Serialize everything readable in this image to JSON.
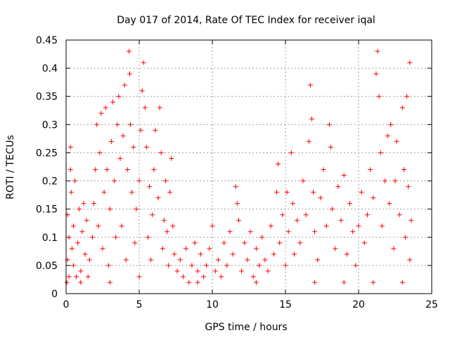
{
  "chart_data": {
    "type": "scatter",
    "title": "Day 017 of 2014, Rate Of TEC Index for receiver iqal",
    "xlabel": "GPS time / hours",
    "ylabel": "ROTI / TECUs",
    "xlim": [
      0,
      25
    ],
    "ylim": [
      0,
      0.45
    ],
    "x_ticks": [
      0,
      5,
      10,
      15,
      20,
      25
    ],
    "x_tick_labels": [
      "0",
      "5",
      "10",
      "15",
      "20",
      "25"
    ],
    "y_ticks": [
      0,
      0.05,
      0.1,
      0.15,
      0.2,
      0.25,
      0.3,
      0.35,
      0.4,
      0.45
    ],
    "y_tick_labels": [
      "0",
      "0.05",
      "0.1",
      "0.15",
      "0.2",
      "0.25",
      "0.3",
      "0.35",
      "0.4",
      "0.45"
    ],
    "grid": true,
    "legend": "none",
    "marker": "plus",
    "color": "#ff0000",
    "series": [
      {
        "values": [
          [
            0.1,
            0.06
          ],
          [
            0.1,
            0.14
          ],
          [
            0.2,
            0.03
          ],
          [
            0.2,
            0.1
          ],
          [
            0.3,
            0.22
          ],
          [
            0.3,
            0.26
          ],
          [
            0.35,
            0.18
          ],
          [
            0.4,
            0.08
          ],
          [
            0.5,
            0.05
          ],
          [
            0.5,
            0.12
          ],
          [
            0.6,
            0.2
          ],
          [
            0.7,
            0.03
          ],
          [
            0.8,
            0.09
          ],
          [
            0.9,
            0.15
          ],
          [
            1.0,
            0.04
          ],
          [
            1.1,
            0.11
          ],
          [
            1.2,
            0.16
          ],
          [
            1.3,
            0.07
          ],
          [
            1.4,
            0.13
          ],
          [
            1.5,
            0.03
          ],
          [
            1.6,
            0.06
          ],
          [
            1.8,
            0.1
          ],
          [
            1.9,
            0.16
          ],
          [
            2.0,
            0.22
          ],
          [
            2.1,
            0.3
          ],
          [
            2.2,
            0.12
          ],
          [
            2.3,
            0.25
          ],
          [
            2.4,
            0.32
          ],
          [
            2.5,
            0.08
          ],
          [
            2.6,
            0.18
          ],
          [
            2.7,
            0.33
          ],
          [
            2.8,
            0.22
          ],
          [
            2.9,
            0.05
          ],
          [
            3.0,
            0.15
          ],
          [
            3.1,
            0.27
          ],
          [
            3.2,
            0.34
          ],
          [
            3.3,
            0.2
          ],
          [
            3.4,
            0.1
          ],
          [
            3.5,
            0.3
          ],
          [
            3.6,
            0.35
          ],
          [
            3.7,
            0.24
          ],
          [
            3.8,
            0.12
          ],
          [
            3.9,
            0.28
          ],
          [
            4.0,
            0.37
          ],
          [
            4.1,
            0.06
          ],
          [
            4.2,
            0.22
          ],
          [
            4.3,
            0.43
          ],
          [
            4.35,
            0.39
          ],
          [
            4.4,
            0.3
          ],
          [
            4.5,
            0.18
          ],
          [
            4.6,
            0.26
          ],
          [
            4.7,
            0.09
          ],
          [
            4.8,
            0.15
          ],
          [
            5.0,
            0.2
          ],
          [
            5.1,
            0.29
          ],
          [
            5.2,
            0.36
          ],
          [
            5.3,
            0.41
          ],
          [
            5.4,
            0.33
          ],
          [
            5.5,
            0.26
          ],
          [
            5.6,
            0.1
          ],
          [
            5.7,
            0.19
          ],
          [
            5.8,
            0.06
          ],
          [
            5.9,
            0.14
          ],
          [
            6.0,
            0.22
          ],
          [
            6.1,
            0.29
          ],
          [
            6.3,
            0.17
          ],
          [
            6.4,
            0.33
          ],
          [
            6.5,
            0.25
          ],
          [
            6.6,
            0.08
          ],
          [
            6.7,
            0.13
          ],
          [
            6.8,
            0.2
          ],
          [
            6.9,
            0.11
          ],
          [
            7.0,
            0.05
          ],
          [
            7.1,
            0.18
          ],
          [
            7.2,
            0.24
          ],
          [
            7.3,
            0.12
          ],
          [
            7.4,
            0.07
          ],
          [
            7.6,
            0.04
          ],
          [
            7.8,
            0.06
          ],
          [
            8.0,
            0.03
          ],
          [
            8.2,
            0.08
          ],
          [
            8.4,
            0.02
          ],
          [
            8.6,
            0.05
          ],
          [
            8.8,
            0.09
          ],
          [
            9.0,
            0.04
          ],
          [
            9.2,
            0.07
          ],
          [
            9.4,
            0.03
          ],
          [
            9.6,
            0.05
          ],
          [
            9.8,
            0.08
          ],
          [
            10.0,
            0.12
          ],
          [
            10.2,
            0.04
          ],
          [
            10.4,
            0.06
          ],
          [
            10.6,
            0.03
          ],
          [
            10.8,
            0.09
          ],
          [
            11.0,
            0.05
          ],
          [
            11.2,
            0.11
          ],
          [
            11.4,
            0.07
          ],
          [
            11.6,
            0.19
          ],
          [
            11.7,
            0.16
          ],
          [
            11.8,
            0.13
          ],
          [
            12.0,
            0.04
          ],
          [
            12.2,
            0.09
          ],
          [
            12.4,
            0.06
          ],
          [
            12.6,
            0.11
          ],
          [
            12.8,
            0.03
          ],
          [
            13.0,
            0.08
          ],
          [
            13.2,
            0.05
          ],
          [
            13.4,
            0.1
          ],
          [
            13.6,
            0.06
          ],
          [
            13.8,
            0.04
          ],
          [
            14.0,
            0.12
          ],
          [
            14.2,
            0.07
          ],
          [
            14.4,
            0.18
          ],
          [
            14.5,
            0.23
          ],
          [
            14.6,
            0.09
          ],
          [
            14.8,
            0.14
          ],
          [
            15.0,
            0.05
          ],
          [
            15.1,
            0.18
          ],
          [
            15.2,
            0.11
          ],
          [
            15.4,
            0.25
          ],
          [
            15.5,
            0.16
          ],
          [
            15.6,
            0.07
          ],
          [
            15.8,
            0.13
          ],
          [
            16.0,
            0.09
          ],
          [
            16.2,
            0.2
          ],
          [
            16.4,
            0.14
          ],
          [
            16.6,
            0.27
          ],
          [
            16.7,
            0.37
          ],
          [
            16.8,
            0.31
          ],
          [
            16.9,
            0.18
          ],
          [
            17.0,
            0.11
          ],
          [
            17.2,
            0.06
          ],
          [
            17.4,
            0.17
          ],
          [
            17.6,
            0.22
          ],
          [
            17.8,
            0.12
          ],
          [
            18.0,
            0.3
          ],
          [
            18.1,
            0.26
          ],
          [
            18.2,
            0.15
          ],
          [
            18.4,
            0.08
          ],
          [
            18.6,
            0.19
          ],
          [
            18.8,
            0.13
          ],
          [
            19.0,
            0.21
          ],
          [
            19.2,
            0.07
          ],
          [
            19.4,
            0.16
          ],
          [
            19.6,
            0.11
          ],
          [
            19.8,
            0.05
          ],
          [
            20.0,
            0.12
          ],
          [
            20.2,
            0.18
          ],
          [
            20.4,
            0.09
          ],
          [
            20.6,
            0.14
          ],
          [
            20.8,
            0.22
          ],
          [
            21.0,
            0.17
          ],
          [
            21.2,
            0.39
          ],
          [
            21.3,
            0.43
          ],
          [
            21.4,
            0.35
          ],
          [
            21.5,
            0.25
          ],
          [
            21.6,
            0.12
          ],
          [
            21.8,
            0.2
          ],
          [
            22.0,
            0.28
          ],
          [
            22.1,
            0.16
          ],
          [
            22.2,
            0.3
          ],
          [
            22.4,
            0.08
          ],
          [
            22.5,
            0.2
          ],
          [
            22.6,
            0.27
          ],
          [
            22.8,
            0.14
          ],
          [
            23.0,
            0.33
          ],
          [
            23.1,
            0.22
          ],
          [
            23.2,
            0.1
          ],
          [
            23.3,
            0.35
          ],
          [
            23.4,
            0.19
          ],
          [
            23.5,
            0.41
          ],
          [
            23.5,
            0.06
          ],
          [
            23.6,
            0.13
          ],
          [
            0.05,
            0.02
          ],
          [
            1.0,
            0.02
          ],
          [
            3.0,
            0.02
          ],
          [
            5.0,
            0.03
          ],
          [
            9.0,
            0.02
          ],
          [
            13.0,
            0.02
          ],
          [
            17.0,
            0.02
          ],
          [
            19.0,
            0.02
          ],
          [
            21.0,
            0.02
          ],
          [
            23.0,
            0.02
          ]
        ]
      }
    ]
  }
}
